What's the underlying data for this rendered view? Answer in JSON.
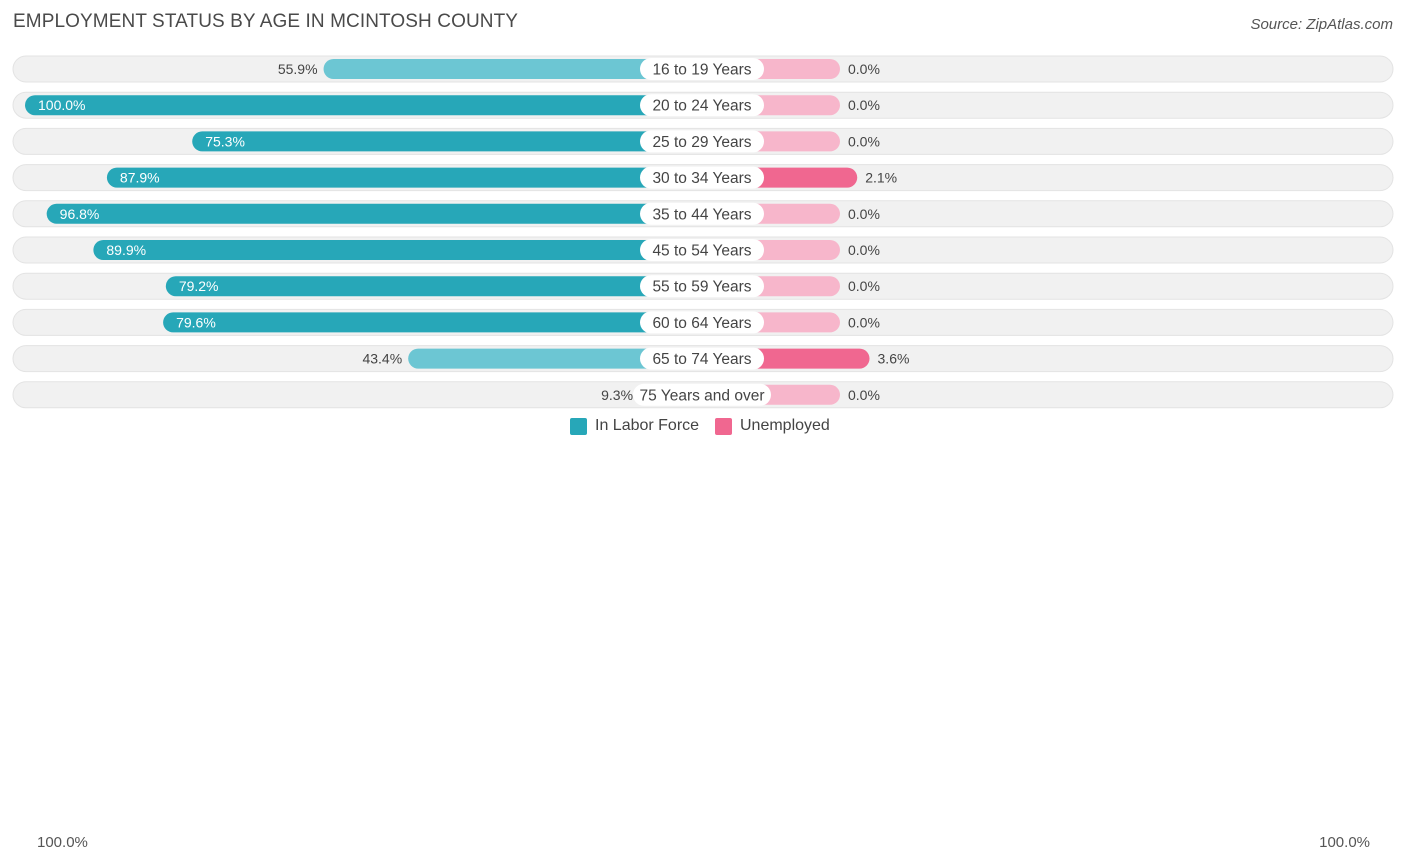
{
  "header": {
    "title": "EMPLOYMENT STATUS BY AGE IN MCINTOSH COUNTY",
    "source": "Source: ZipAtlas.com"
  },
  "colors": {
    "labor_strong": "#27a7b8",
    "labor_light": "#6cc6d3",
    "unemp_strong": "#f06790",
    "unemp_light": "#f7b6cb",
    "track": "#f1f1f1"
  },
  "chart_data": {
    "type": "bar",
    "orientation": "horizontal-diverging",
    "title": "EMPLOYMENT STATUS BY AGE IN MCINTOSH COUNTY",
    "categories": [
      "16 to 19 Years",
      "20 to 24 Years",
      "25 to 29 Years",
      "30 to 34 Years",
      "35 to 44 Years",
      "45 to 54 Years",
      "55 to 59 Years",
      "60 to 64 Years",
      "65 to 74 Years",
      "75 Years and over"
    ],
    "series": [
      {
        "name": "In Labor Force",
        "values": [
          55.9,
          100.0,
          75.3,
          87.9,
          96.8,
          89.9,
          79.2,
          79.6,
          43.4,
          9.3
        ],
        "labels": [
          "55.9%",
          "100.0%",
          "75.3%",
          "87.9%",
          "96.8%",
          "89.9%",
          "79.2%",
          "79.6%",
          "43.4%",
          "9.3%"
        ]
      },
      {
        "name": "Unemployed",
        "values": [
          0.0,
          0.0,
          0.0,
          2.1,
          0.0,
          0.0,
          0.0,
          0.0,
          3.6,
          0.0
        ],
        "labels": [
          "0.0%",
          "0.0%",
          "0.0%",
          "2.1%",
          "0.0%",
          "0.0%",
          "0.0%",
          "0.0%",
          "3.6%",
          "0.0%"
        ]
      }
    ],
    "axis": {
      "left_label": "100.0%",
      "right_label": "100.0%",
      "range": [
        -100,
        100
      ]
    },
    "legend": [
      "In Labor Force",
      "Unemployed"
    ],
    "legend_position": "bottom-center"
  }
}
